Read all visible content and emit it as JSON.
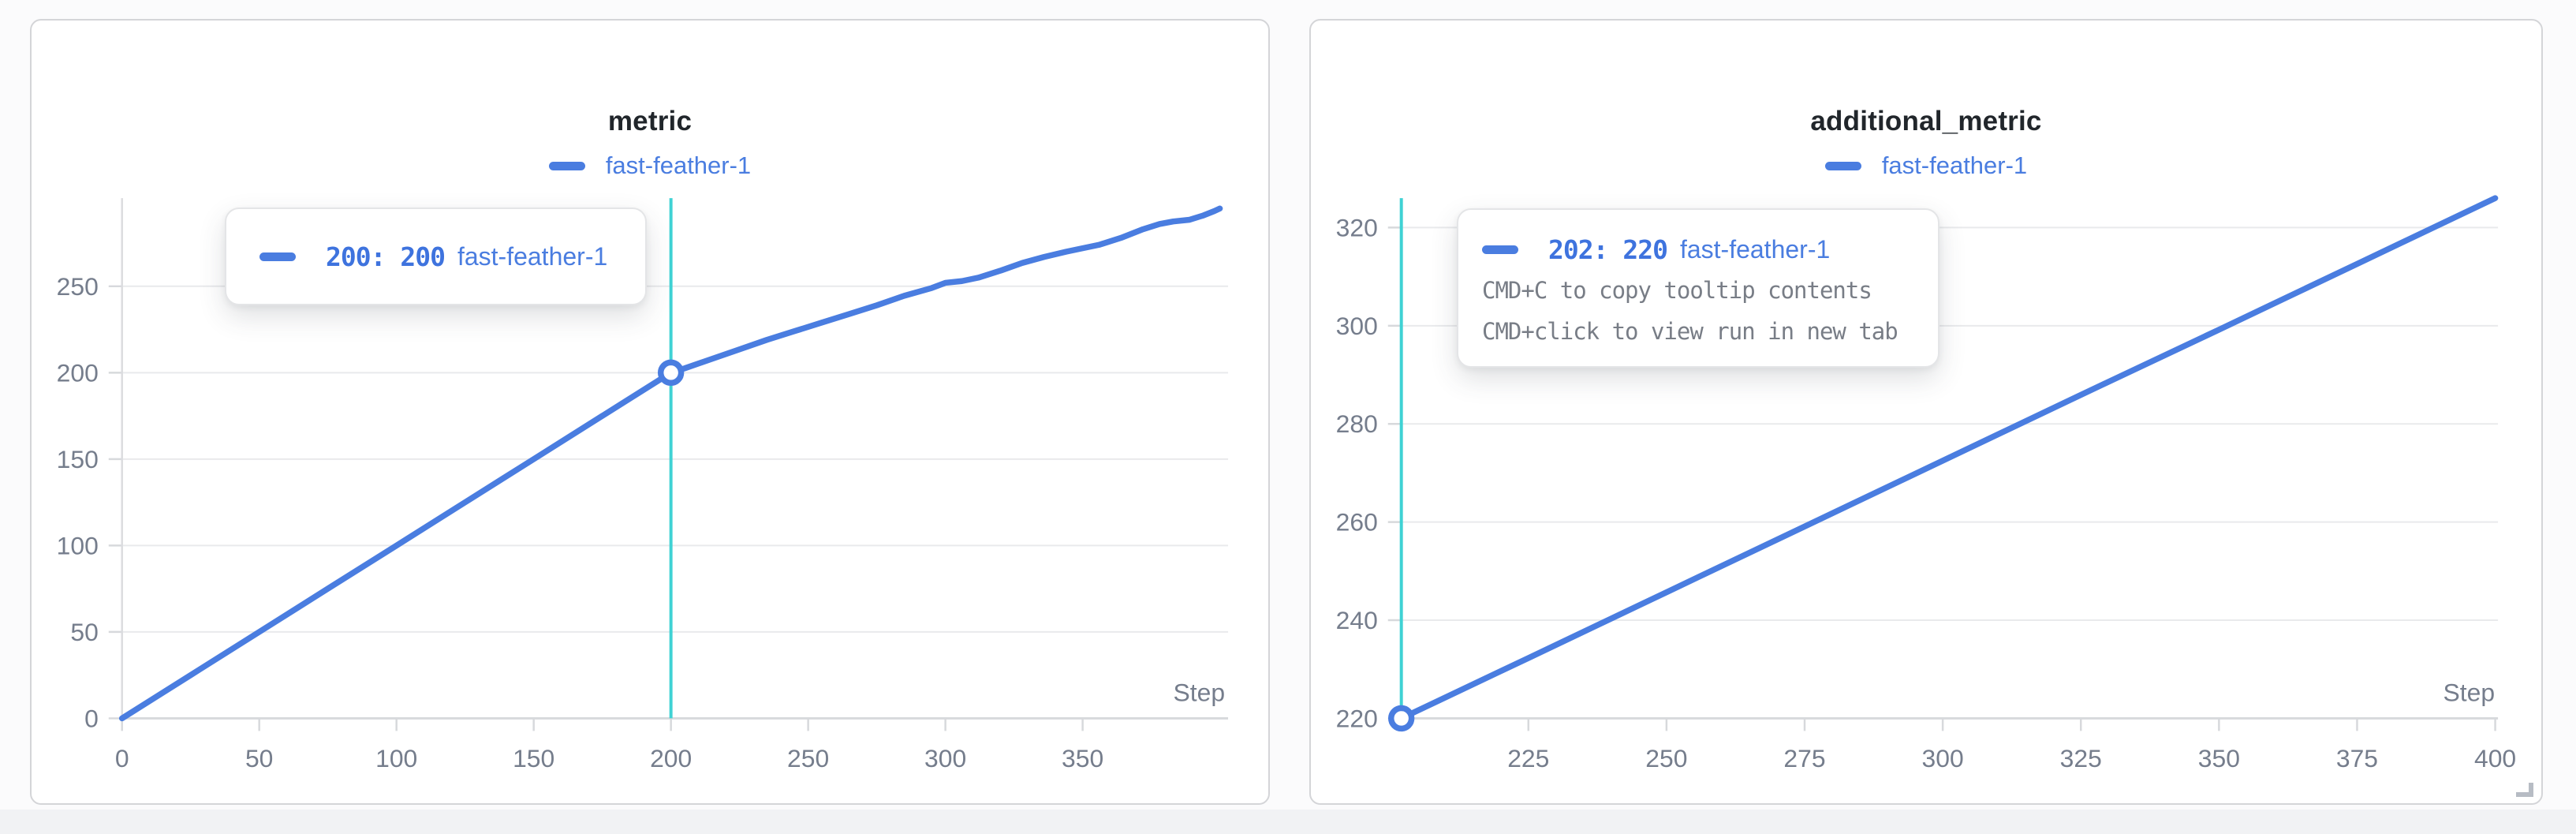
{
  "colors": {
    "accent": "#4a7de0",
    "crosshair": "#3fd2d4",
    "grid": "#e9eaec",
    "axis": "#d7d9dc",
    "tick_label": "#757d8c",
    "hint_text": "#787d86"
  },
  "panels": [
    {
      "title": "metric",
      "legend": [
        {
          "label": "fast-feather-1"
        }
      ],
      "tooltip": {
        "step_label": "200: 200",
        "run_name": "fast-feather-1"
      }
    },
    {
      "title": "additional_metric",
      "legend": [
        {
          "label": "fast-feather-1"
        }
      ],
      "tooltip": {
        "step_label": "202: 220",
        "run_name": "fast-feather-1",
        "hint_copy": "CMD+C to copy tooltip contents",
        "hint_open": "CMD+click to view run in new tab"
      }
    }
  ],
  "chart_data": [
    {
      "type": "line",
      "title": "metric",
      "xlabel": "Step",
      "x_ticks": [
        0,
        50,
        100,
        150,
        200,
        250,
        300,
        350
      ],
      "y_ticks": [
        0,
        50,
        100,
        150,
        200,
        250
      ],
      "x_domain": [
        0,
        403
      ],
      "y_domain": [
        0,
        301
      ],
      "grid": true,
      "y_axis_line": true,
      "legend_position": "top-center",
      "crosshair_x": 200,
      "highlight_point": [
        200,
        200
      ],
      "series": [
        {
          "name": "fast-feather-1",
          "color": "#4a7de0",
          "points": [
            [
              0,
              0
            ],
            [
              25,
              25
            ],
            [
              50,
              50
            ],
            [
              75,
              75
            ],
            [
              100,
              100
            ],
            [
              125,
              125
            ],
            [
              150,
              150
            ],
            [
              175,
              175
            ],
            [
              200,
              200
            ],
            [
              205,
              202.5
            ],
            [
              215,
              208
            ],
            [
              225,
              213.5
            ],
            [
              235,
              219
            ],
            [
              245,
              224
            ],
            [
              255,
              229
            ],
            [
              265,
              234
            ],
            [
              275,
              239
            ],
            [
              285,
              244.5
            ],
            [
              295,
              249
            ],
            [
              300,
              252
            ],
            [
              306,
              253
            ],
            [
              312,
              255
            ],
            [
              320,
              259
            ],
            [
              328,
              263.5
            ],
            [
              336,
              267
            ],
            [
              344,
              270
            ],
            [
              350,
              272
            ],
            [
              356,
              274
            ],
            [
              364,
              278
            ],
            [
              372,
              283
            ],
            [
              378,
              286
            ],
            [
              383,
              287.5
            ],
            [
              389,
              288.5
            ],
            [
              394,
              291
            ],
            [
              398,
              293.5
            ],
            [
              400,
              295
            ]
          ]
        }
      ]
    },
    {
      "type": "line",
      "title": "additional_metric",
      "xlabel": "Step",
      "x_ticks": [
        225,
        250,
        275,
        300,
        325,
        350,
        375,
        400
      ],
      "y_ticks": [
        220,
        240,
        260,
        280,
        300,
        320
      ],
      "x_domain": [
        202,
        400.5
      ],
      "y_domain": [
        220,
        326
      ],
      "grid": true,
      "y_axis_line": false,
      "legend_position": "top-center",
      "crosshair_x": 202,
      "highlight_point": [
        202,
        220
      ],
      "series": [
        {
          "name": "fast-feather-1",
          "color": "#4a7de0",
          "points": [
            [
              202,
              220
            ],
            [
              225,
              232.3
            ],
            [
              250,
              245.7
            ],
            [
              275,
              259.1
            ],
            [
              300,
              272.5
            ],
            [
              325,
              285.9
            ],
            [
              350,
              299.2
            ],
            [
              375,
              312.6
            ],
            [
              400,
              326
            ]
          ]
        }
      ]
    }
  ]
}
